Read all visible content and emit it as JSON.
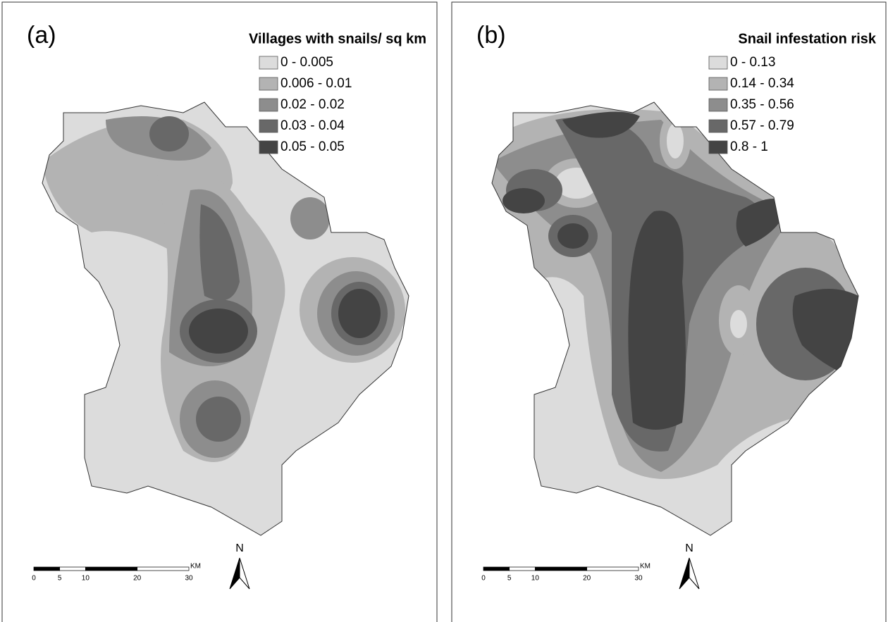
{
  "panels": [
    {
      "label": "(a)",
      "legend": {
        "title": "Villages with snails/ sq km",
        "items": [
          "0 - 0.005",
          "0.006 - 0.01",
          "0.02 - 0.02",
          "0.03 - 0.04",
          "0.05 - 0.05"
        ],
        "colors": [
          "#dcdcdc",
          "#b3b3b3",
          "#8d8d8d",
          "#686868",
          "#444444"
        ]
      }
    },
    {
      "label": "(b)",
      "legend": {
        "title": "Snail infestation risk",
        "items": [
          "0 - 0.13",
          "0.14 - 0.34",
          "0.35 - 0.56",
          "0.57 - 0.79",
          "0.8 - 1"
        ],
        "colors": [
          "#dcdcdc",
          "#b3b3b3",
          "#8d8d8d",
          "#686868",
          "#444444"
        ]
      }
    }
  ],
  "scale": {
    "ticks": [
      0,
      5,
      10,
      20,
      30
    ],
    "unit": "KM"
  },
  "north": "N"
}
